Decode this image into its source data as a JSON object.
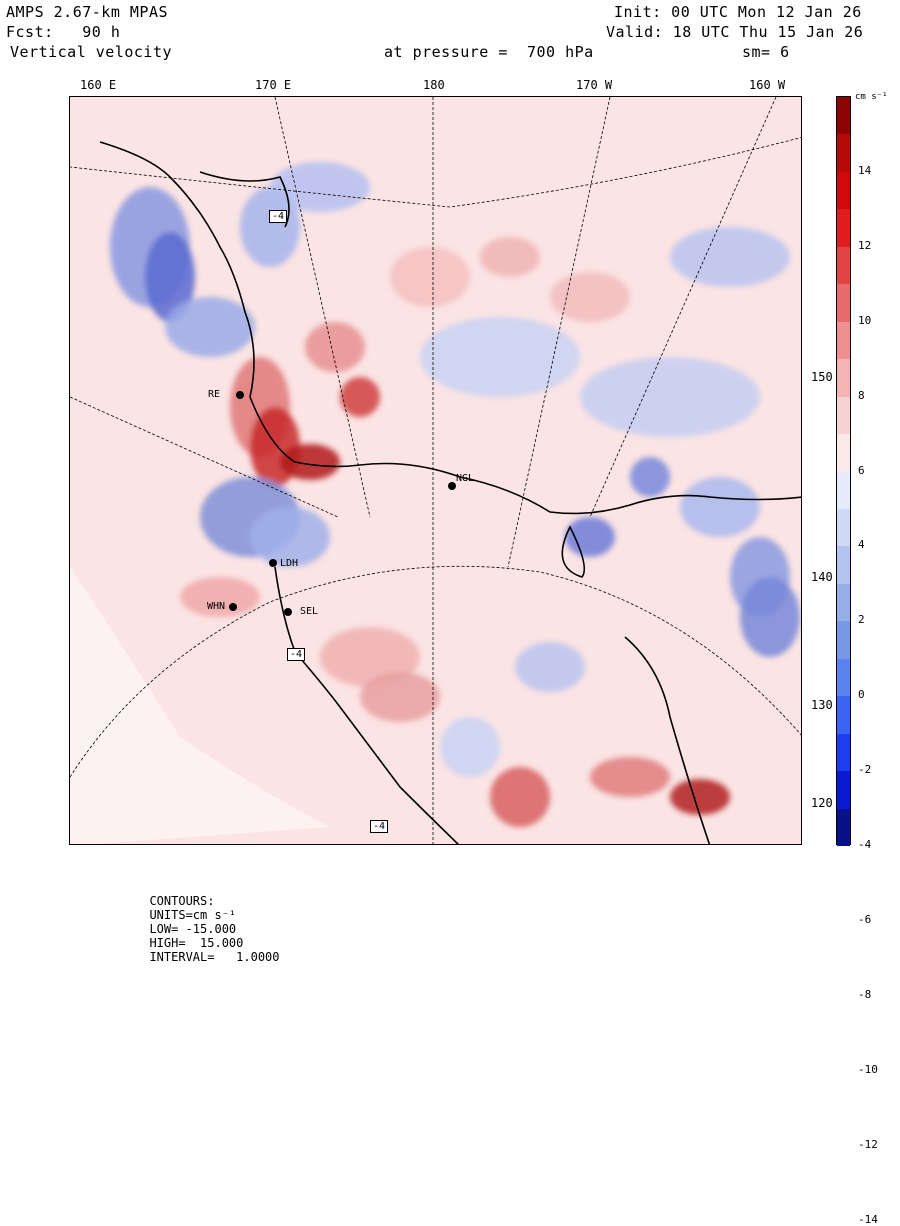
{
  "header": {
    "model": "AMPS 2.67-km MPAS",
    "fcst": "Fcst:   90 h",
    "field": "Vertical velocity",
    "init": "Init: 00 UTC Mon 12 Jan 26",
    "valid": "Valid: 18 UTC Thu 15 Jan 26",
    "level": "at pressure =  700 hPa",
    "smooth": "sm= 6"
  },
  "lon_labels": [
    "160 E",
    "170 E",
    "180",
    "170 W",
    "160 W"
  ],
  "lat_labels": [
    "150 W",
    "140 W",
    "130 W",
    "120 W"
  ],
  "colorbar": {
    "units": "cm s⁻¹",
    "ticks": [
      "14",
      "12",
      "10",
      "8",
      "6",
      "4",
      "2",
      "0",
      "-2",
      "-4",
      "-6",
      "-8",
      "-10",
      "-12",
      "-14"
    ],
    "colors": [
      "#08108a",
      "#0a1ad0",
      "#1e3cf0",
      "#3c64f4",
      "#5a82f0",
      "#7898e6",
      "#96aee8",
      "#b4c4f0",
      "#d0daf6",
      "#e6ecfb",
      "#fbe8e8",
      "#f7d2d2",
      "#f3b4b4",
      "#ee9090",
      "#e86a6a",
      "#e24444",
      "#e01e1e",
      "#d00a0a",
      "#b40a0a",
      "#8c0404"
    ]
  },
  "stations": [
    "NGL",
    "RE",
    "LDH",
    "WHN",
    "SEL"
  ],
  "boxed_values": [
    "-4",
    "-4",
    "-4"
  ],
  "footer": {
    "contours": "CONTOURS:",
    "units": "UNITS=cm s⁻¹",
    "low": "LOW= -15.000",
    "high": "HIGH=  15.000",
    "interval": "INTERVAL=   1.0000"
  }
}
